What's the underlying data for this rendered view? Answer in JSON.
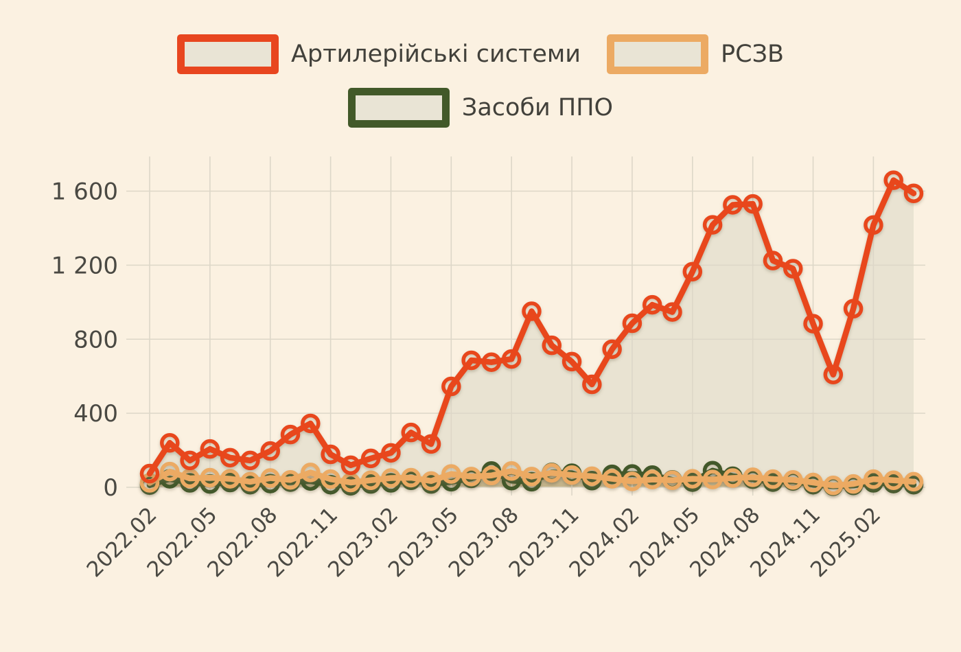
{
  "page": {
    "background": "#fbf1e1",
    "text_color": "#42413b",
    "grid_color": "#ddd7c8"
  },
  "legend": {
    "items": [
      {
        "label": "Артилерійські системи",
        "color": "#e8461f"
      },
      {
        "label": "РСЗВ",
        "color": "#ecaa63"
      },
      {
        "label": "Засоби ППО",
        "color": "#425929"
      }
    ]
  },
  "chart_data": {
    "type": "line",
    "title": "",
    "xlabel": "",
    "ylabel": "",
    "grid": true,
    "legend_position": "top",
    "ylim": [
      0,
      1700
    ],
    "yticks": [
      {
        "value": 0,
        "label": "0"
      },
      {
        "value": 400,
        "label": "400"
      },
      {
        "value": 800,
        "label": "800"
      },
      {
        "value": 1200,
        "label": "1 200"
      },
      {
        "value": 1600,
        "label": "1 600"
      }
    ],
    "x_tick_labels": [
      "2022.02",
      "2022.05",
      "2022.08",
      "2022.11",
      "2023.02",
      "2023.05",
      "2023.08",
      "2023.11",
      "2024.02",
      "2024.05",
      "2024.08",
      "2024.11",
      "2025.02"
    ],
    "x": [
      "2022.02",
      "2022.03",
      "2022.04",
      "2022.05",
      "2022.06",
      "2022.07",
      "2022.08",
      "2022.09",
      "2022.10",
      "2022.11",
      "2022.12",
      "2023.01",
      "2023.02",
      "2023.03",
      "2023.04",
      "2023.05",
      "2023.06",
      "2023.07",
      "2023.08",
      "2023.09",
      "2023.10",
      "2023.11",
      "2023.12",
      "2024.01",
      "2024.02",
      "2024.03",
      "2024.04",
      "2024.05",
      "2024.06",
      "2024.07",
      "2024.08",
      "2024.09",
      "2024.10",
      "2024.11",
      "2024.12",
      "2025.01",
      "2025.02",
      "2025.03",
      "2025.04"
    ],
    "series": [
      {
        "name": "Артилерійські системи",
        "color": "#e8461f",
        "area_fill": "#e9e3d2",
        "values": [
          74,
          240,
          145,
          207,
          160,
          145,
          196,
          285,
          345,
          178,
          119,
          156,
          186,
          296,
          234,
          545,
          686,
          676,
          693,
          951,
          767,
          679,
          556,
          746,
          886,
          986,
          947,
          1165,
          1418,
          1526,
          1531,
          1225,
          1181,
          884,
          609,
          965,
          1417,
          1659,
          1588
        ]
      },
      {
        "name": "РСЗВ",
        "color": "#ecaa63",
        "area_fill": "rgba(236,170,99,0.38)",
        "values": [
          24,
          85,
          48,
          52,
          46,
          30,
          50,
          40,
          80,
          44,
          26,
          38,
          50,
          52,
          34,
          72,
          58,
          64,
          88,
          58,
          78,
          66,
          60,
          46,
          32,
          42,
          38,
          46,
          42,
          50,
          54,
          44,
          40,
          26,
          10,
          18,
          44,
          38,
          30
        ]
      },
      {
        "name": "Засоби ППО",
        "color": "#425929",
        "area_fill": "rgba(66,89,41,0.22)",
        "values": [
          12,
          46,
          24,
          18,
          26,
          14,
          20,
          28,
          34,
          14,
          8,
          18,
          24,
          38,
          18,
          30,
          48,
          88,
          36,
          30,
          80,
          76,
          36,
          70,
          72,
          66,
          40,
          28,
          90,
          60,
          44,
          28,
          34,
          14,
          6,
          10,
          24,
          20,
          14
        ]
      }
    ]
  }
}
